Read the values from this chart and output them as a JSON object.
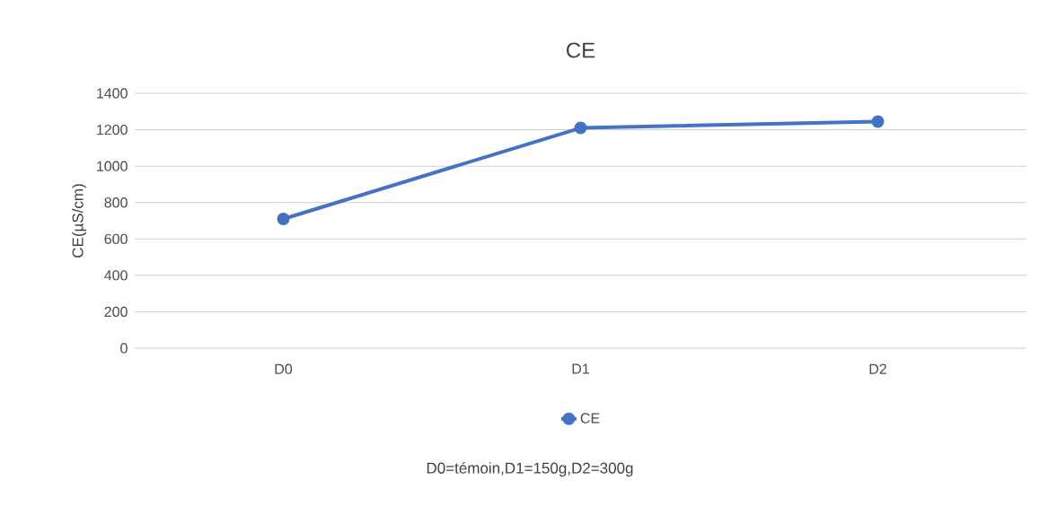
{
  "chart_data": {
    "type": "line",
    "title": "CE",
    "ylabel": "CE(µS/cm)",
    "categories": [
      "D0",
      "D1",
      "D2"
    ],
    "series": [
      {
        "name": "CE",
        "color": "#4472c4",
        "values": [
          710,
          1210,
          1245
        ]
      }
    ],
    "ylim": [
      0,
      1400
    ],
    "yticks": [
      0,
      200,
      400,
      600,
      800,
      1000,
      1200,
      1400
    ],
    "grid": "y",
    "legend": "bottom",
    "marker": "circle",
    "line_style": "solid",
    "annotations": [
      "D0=témoin,D1=150g,D2=300g"
    ]
  }
}
